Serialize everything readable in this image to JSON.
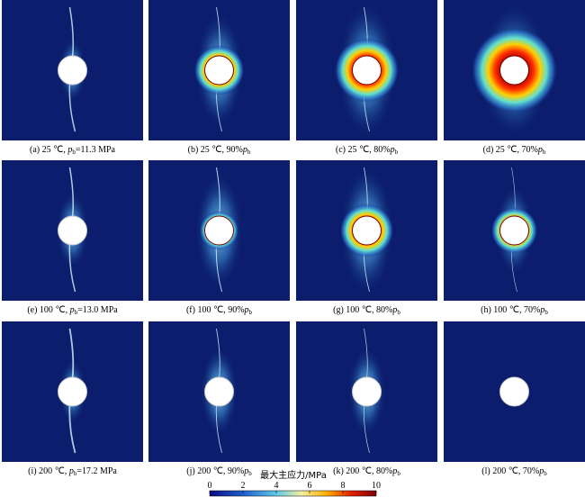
{
  "captions": [
    {
      "text": "(a) 25 ℃, ",
      "symbol": "p",
      "subscript": "b",
      "rest": "=11.3 MPa"
    },
    {
      "text": "(b) 25 ℃, 90%",
      "symbol": "p",
      "subscript": "b"
    },
    {
      "text": "(c) 25 ℃, 80%",
      "symbol": "p",
      "subscript": "b"
    },
    {
      "text": "(d) 25 ℃, 70%",
      "symbol": "p",
      "subscript": "b"
    },
    {
      "text": "(e) 100 ℃, ",
      "symbol": "p",
      "subscript": "b",
      "rest": "=13.0 MPa"
    },
    {
      "text": "(f) 100 ℃, 90%",
      "symbol": "p",
      "subscript": "b"
    },
    {
      "text": "(g) 100 ℃, 80%",
      "symbol": "p",
      "subscript": "b"
    },
    {
      "text": "(h) 100 ℃, 70%",
      "symbol": "p",
      "subscript": "b"
    },
    {
      "text": "(i) 200 ℃, ",
      "symbol": "p",
      "subscript": "b",
      "rest": "=17.2 MPa"
    },
    {
      "text": "(j) 200 ℃, 90%",
      "symbol": "p",
      "subscript": "b"
    },
    {
      "text": "(k) 200 ℃, 80%",
      "symbol": "p",
      "subscript": "b"
    },
    {
      "text": "(l) 200 ℃, 70%",
      "symbol": "p",
      "subscript": "b"
    }
  ],
  "colorbar": {
    "title": "最大主应力/MPa",
    "lim": [
      0,
      10
    ],
    "ticks": [
      0,
      2,
      4,
      6,
      8,
      10
    ]
  }
}
